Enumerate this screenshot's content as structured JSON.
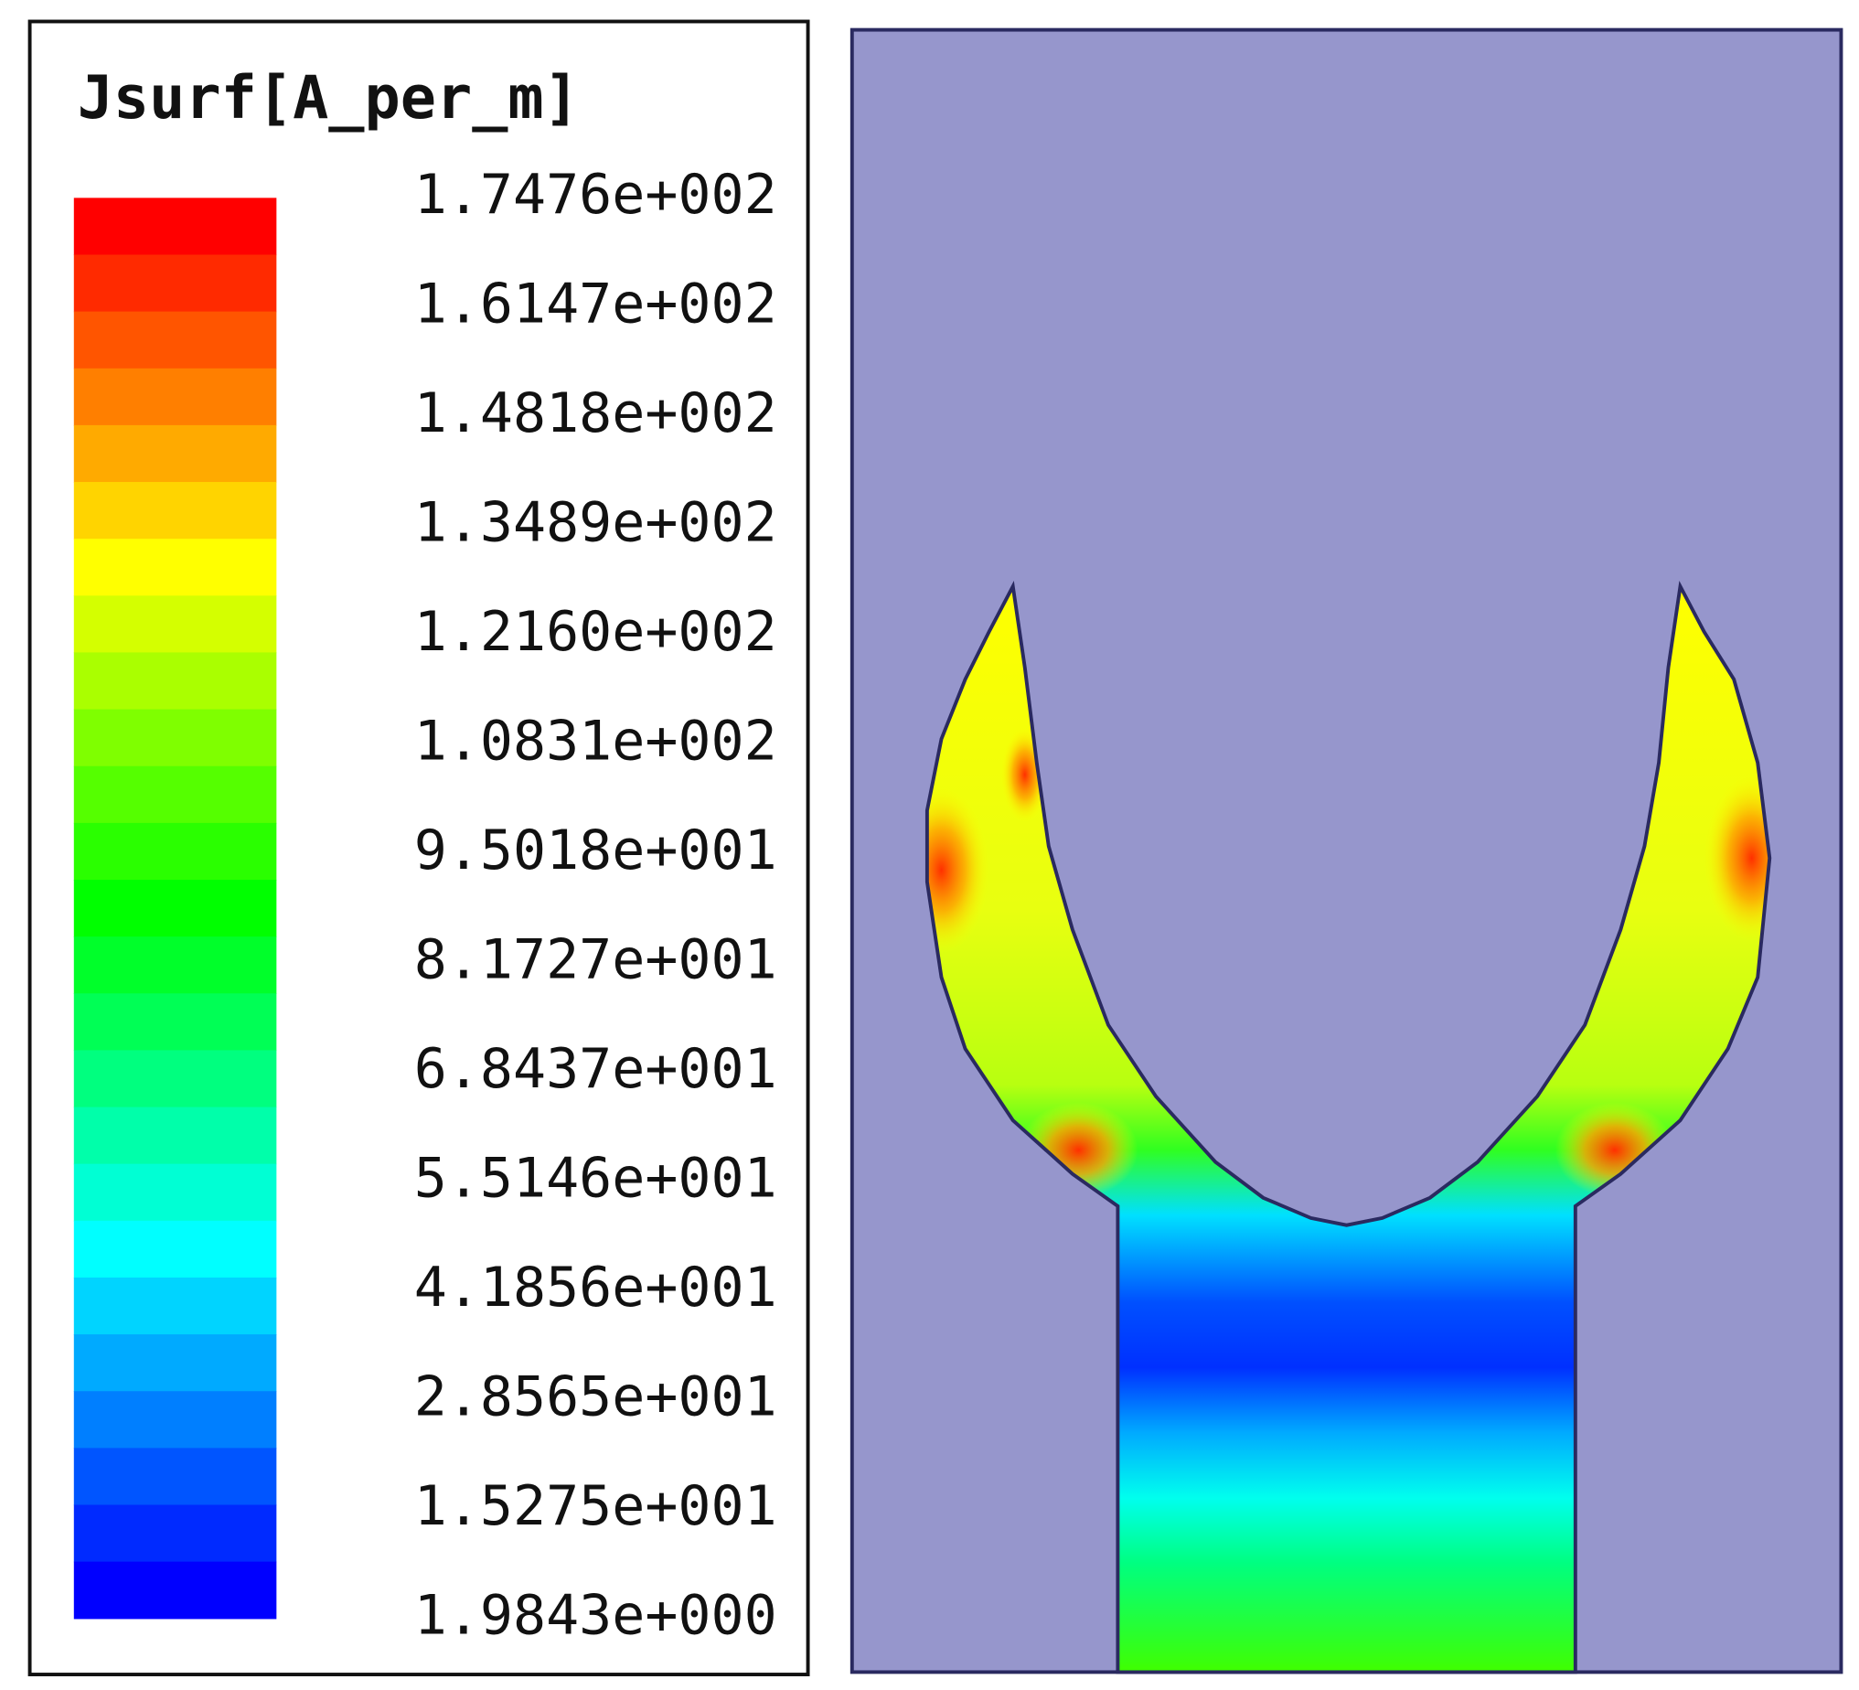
{
  "legend": {
    "title": "Jsurf[A_per_m]",
    "labels": [
      "1.7476e+002",
      "1.6147e+002",
      "1.4818e+002",
      "1.3489e+002",
      "1.2160e+002",
      "1.0831e+002",
      "9.5018e+001",
      "8.1727e+001",
      "6.8437e+001",
      "5.5146e+001",
      "4.1856e+001",
      "2.8565e+001",
      "1.5275e+001",
      "1.9843e+000"
    ],
    "colors": [
      "#ff0000",
      "#ff2a00",
      "#ff5500",
      "#ff7f00",
      "#ffaa00",
      "#ffd400",
      "#ffff00",
      "#d4ff00",
      "#aaff00",
      "#7fff00",
      "#55ff00",
      "#2aff00",
      "#00ff00",
      "#00ff2a",
      "#00ff55",
      "#00ff7f",
      "#00ffaa",
      "#00ffd4",
      "#00ffff",
      "#00d4ff",
      "#00aaff",
      "#007fff",
      "#0055ff",
      "#002aff",
      "#0000ff"
    ]
  }
}
